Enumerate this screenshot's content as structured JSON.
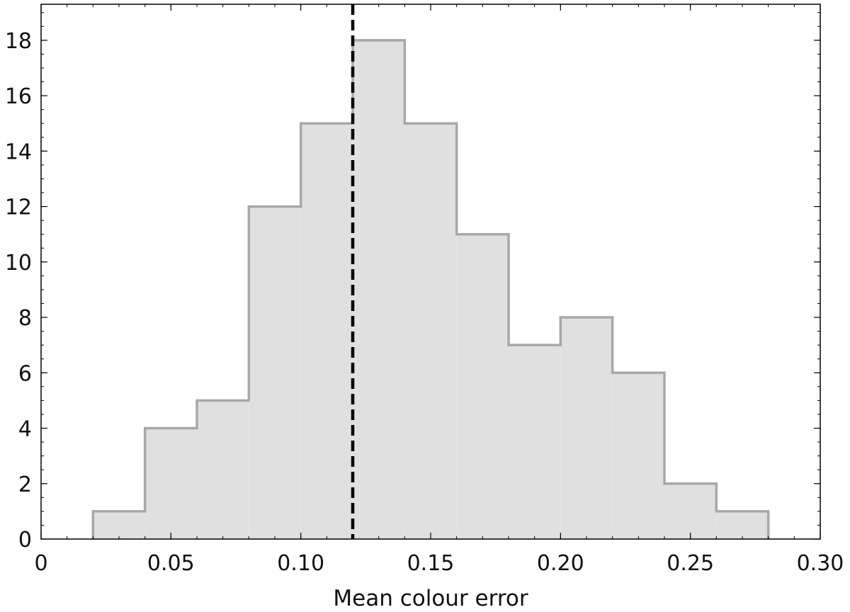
{
  "chart_data": {
    "type": "bar",
    "subtype": "histogram",
    "title": "",
    "xlabel": "Mean colour error",
    "ylabel": "",
    "xlim": [
      0,
      0.3
    ],
    "ylim": [
      0,
      19.3
    ],
    "grid": false,
    "legend": "none",
    "x_ticks": [
      {
        "value": 0,
        "label": "0"
      },
      {
        "value": 0.05,
        "label": "0.05"
      },
      {
        "value": 0.1,
        "label": "0.10"
      },
      {
        "value": 0.15,
        "label": "0.15"
      },
      {
        "value": 0.2,
        "label": "0.20"
      },
      {
        "value": 0.25,
        "label": "0.25"
      },
      {
        "value": 0.3,
        "label": "0.30"
      }
    ],
    "y_ticks": [
      {
        "value": 0,
        "label": "0"
      },
      {
        "value": 2,
        "label": "2"
      },
      {
        "value": 4,
        "label": "4"
      },
      {
        "value": 6,
        "label": "6"
      },
      {
        "value": 8,
        "label": "8"
      },
      {
        "value": 10,
        "label": "10"
      },
      {
        "value": 12,
        "label": "12"
      },
      {
        "value": 14,
        "label": "14"
      },
      {
        "value": 16,
        "label": "16"
      },
      {
        "value": 18,
        "label": "18"
      }
    ],
    "bin_edges": [
      0.02,
      0.04,
      0.06,
      0.08,
      0.1,
      0.12,
      0.14,
      0.16,
      0.18,
      0.2,
      0.22,
      0.24,
      0.26,
      0.28
    ],
    "counts": [
      1,
      4,
      5,
      12,
      15,
      18,
      15,
      11,
      7,
      8,
      6,
      2,
      1
    ],
    "reference_line": {
      "x": 0.12,
      "style": "dashed"
    },
    "colors": {
      "fill": "#e0e0e0",
      "edge": "#a8a8a8",
      "reference": "#000000",
      "frame": "#000000"
    }
  }
}
